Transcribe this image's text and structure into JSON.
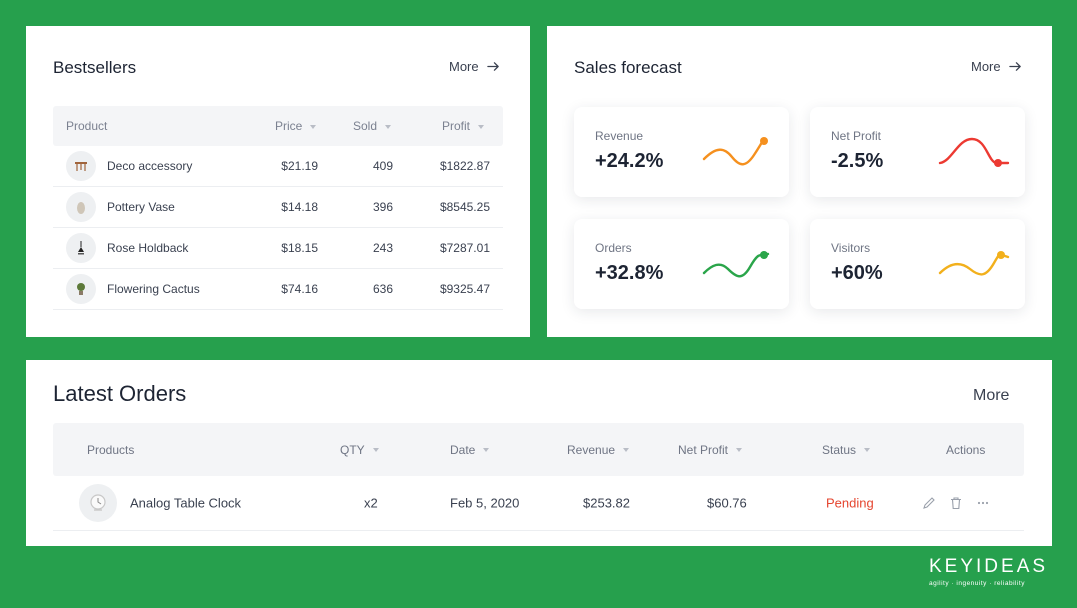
{
  "bestsellers": {
    "title": "Bestsellers",
    "more_label": "More",
    "columns": {
      "product": "Product",
      "price": "Price",
      "sold": "Sold",
      "profit": "Profit"
    },
    "rows": [
      {
        "product": "Deco accessory",
        "price": "$21.19",
        "sold": "409",
        "profit": "$1822.87",
        "icon": "stool-icon"
      },
      {
        "product": "Pottery Vase",
        "price": "$14.18",
        "sold": "396",
        "profit": "$8545.25",
        "icon": "vase-icon"
      },
      {
        "product": "Rose Holdback",
        "price": "$18.15",
        "sold": "243",
        "profit": "$7287.01",
        "icon": "lamp-icon"
      },
      {
        "product": "Flowering Cactus",
        "price": "$74.16",
        "sold": "636",
        "profit": "$9325.47",
        "icon": "plant-icon"
      }
    ]
  },
  "forecast": {
    "title": "Sales forecast",
    "more_label": "More",
    "stats": [
      {
        "label": "Revenue",
        "value": "+24.2%",
        "color": "#f5901e"
      },
      {
        "label": "Net Profit",
        "value": "-2.5%",
        "color": "#ec3a32"
      },
      {
        "label": "Orders",
        "value": "+32.8%",
        "color": "#2aa54a"
      },
      {
        "label": "Visitors",
        "value": "+60%",
        "color": "#f2b01c"
      }
    ]
  },
  "orders": {
    "title": "Latest Orders",
    "more_label": "More",
    "columns": {
      "products": "Products",
      "qty": "QTY",
      "date": "Date",
      "revenue": "Revenue",
      "net_profit": "Net Profit",
      "status": "Status",
      "actions": "Actions"
    },
    "rows": [
      {
        "product": "Analog Table Clock",
        "qty": "x2",
        "date": "Feb 5, 2020",
        "revenue": "$253.82",
        "net_profit": "$60.76",
        "status": "Pending",
        "status_color": "#e5452f"
      }
    ]
  },
  "brand": {
    "name": "KEYIDEAS",
    "tagline": "agility · ingenuity · reliability"
  }
}
